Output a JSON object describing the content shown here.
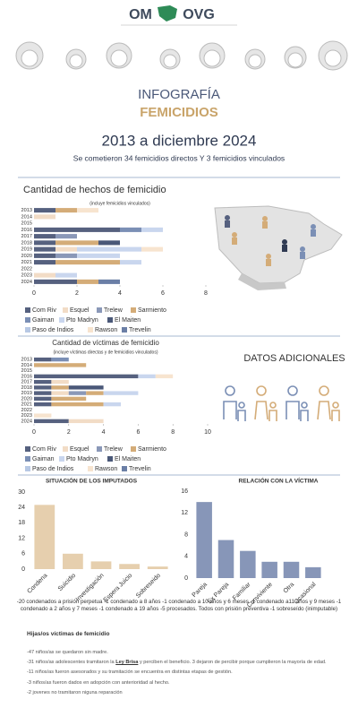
{
  "header": {
    "logo_left": "OM",
    "logo_right": "OVG",
    "title": "INFOGRAFÍA",
    "subtitle": "FEMICIDIOS",
    "period": "2013 a diciembre 2024",
    "summary": "Se cometieron 34 femicidios directos Y 3 femicidios vinculados",
    "extra_title": "DATOS ADICIONALES"
  },
  "chart_data": [
    {
      "type": "bar",
      "orientation": "horizontal",
      "stacked": true,
      "title": "Cantidad de hechos de femicidio",
      "subtitle": "(incluye femicidios vinculados)",
      "categories": [
        "2013",
        "2014",
        "2015",
        "2016",
        "2017",
        "2018",
        "2019",
        "2020",
        "2021",
        "2022",
        "2023",
        "2024"
      ],
      "xlim": [
        0,
        8
      ],
      "xticks": [
        0,
        2,
        4,
        6,
        8
      ],
      "series": [
        {
          "name": "Com Riv",
          "color": "#56617f",
          "values": [
            1,
            0,
            0,
            4,
            1,
            1,
            1,
            1,
            1,
            0,
            0,
            2
          ]
        },
        {
          "name": "Esquel",
          "color": "#f2dcc6",
          "values": [
            0,
            1,
            0,
            0,
            0,
            0,
            1,
            0,
            0,
            0,
            1,
            0
          ]
        },
        {
          "name": "Trelew",
          "color": "#8a98b8",
          "values": [
            0,
            0,
            0,
            0,
            1,
            0,
            0,
            1,
            0,
            0,
            0,
            0
          ]
        },
        {
          "name": "Sarmiento",
          "color": "#d4ac78",
          "values": [
            1,
            0,
            0,
            0,
            0,
            2,
            0,
            0,
            3,
            0,
            0,
            1
          ]
        },
        {
          "name": "Gaiman",
          "color": "#7b8fb5",
          "values": [
            0,
            0,
            0,
            1,
            0,
            0,
            0,
            0,
            0,
            0,
            0,
            0
          ]
        },
        {
          "name": "Pto Madryn",
          "color": "#c9d6ee",
          "values": [
            0,
            0,
            0,
            1,
            0,
            0,
            3,
            2,
            1,
            0,
            1,
            0
          ]
        },
        {
          "name": "El Maiten",
          "color": "#4a5878",
          "values": [
            0,
            0,
            0,
            0,
            0,
            1,
            0,
            0,
            0,
            0,
            0,
            0
          ]
        },
        {
          "name": "Paso de Indios",
          "color": "#b7c8e4",
          "values": [
            0,
            0,
            0,
            0,
            0,
            0,
            0,
            0,
            0,
            0,
            0,
            0
          ]
        },
        {
          "name": "Rawson",
          "color": "#f7e4cf",
          "values": [
            1,
            0,
            0,
            0,
            0,
            0,
            1,
            0,
            0,
            0,
            0,
            0
          ]
        },
        {
          "name": "Trevelin",
          "color": "#6b7fa6",
          "values": [
            0,
            0,
            0,
            0,
            0,
            0,
            0,
            0,
            0,
            0,
            0,
            1
          ]
        }
      ]
    },
    {
      "type": "bar",
      "orientation": "horizontal",
      "stacked": true,
      "title": "Cantidad de víctimas de femicidio",
      "subtitle": "(incluye víctimas directas y de femicidios vinculados)",
      "categories": [
        "2013",
        "2014",
        "2015",
        "2016",
        "2017",
        "2018",
        "2019",
        "2020",
        "2021",
        "2022",
        "2023",
        "2024"
      ],
      "xlim": [
        0,
        10
      ],
      "xticks": [
        0,
        2,
        4,
        6,
        8,
        10
      ],
      "series": [
        {
          "name": "Com Riv",
          "color": "#56617f",
          "values": [
            1,
            0,
            0,
            6,
            1,
            1,
            1,
            1,
            1,
            0,
            0,
            2
          ]
        },
        {
          "name": "Esquel",
          "color": "#f2dcc6",
          "values": [
            0,
            0,
            0,
            0,
            1,
            0,
            1,
            0,
            0,
            0,
            0,
            2
          ]
        },
        {
          "name": "Trelew",
          "color": "#8a98b8",
          "values": [
            0,
            0,
            0,
            0,
            0,
            0,
            1,
            0,
            0,
            0,
            0,
            0
          ]
        },
        {
          "name": "Sarmiento",
          "color": "#d4ac78",
          "values": [
            0,
            3,
            0,
            0,
            0,
            1,
            1,
            2,
            3,
            0,
            0,
            0
          ]
        },
        {
          "name": "Gaiman",
          "color": "#7b8fb5",
          "values": [
            1,
            0,
            0,
            0,
            0,
            0,
            0,
            0,
            0,
            0,
            0,
            0
          ]
        },
        {
          "name": "Pto Madryn",
          "color": "#c9d6ee",
          "values": [
            0,
            0,
            0,
            1,
            0,
            0,
            2,
            0,
            1,
            0,
            0,
            0
          ]
        },
        {
          "name": "El Maiten",
          "color": "#4a5878",
          "values": [
            0,
            0,
            0,
            0,
            0,
            2,
            0,
            0,
            0,
            0,
            0,
            0
          ]
        },
        {
          "name": "Paso de Indios",
          "color": "#b7c8e4",
          "values": [
            0,
            0,
            0,
            0,
            0,
            0,
            0,
            0,
            0,
            0,
            0,
            0
          ]
        },
        {
          "name": "Rawson",
          "color": "#f7e4cf",
          "values": [
            0,
            0,
            0,
            1,
            0,
            0,
            0,
            0,
            0,
            0,
            1,
            0
          ]
        },
        {
          "name": "Trevelin",
          "color": "#6b7fa6",
          "values": [
            0,
            0,
            0,
            0,
            0,
            0,
            0,
            0,
            0,
            0,
            0,
            0
          ]
        }
      ]
    },
    {
      "type": "bar",
      "title": "SITUACIÓN DE LOS IMPUTADOS",
      "categories": [
        "Condena",
        "Suicidio",
        "Investigación",
        "Espera Juicio",
        "Sobreseido"
      ],
      "values": [
        25,
        6,
        3,
        2,
        1
      ],
      "color": "#e6cfae",
      "ylim": [
        0,
        30
      ],
      "yticks": [
        0,
        6,
        12,
        18,
        24,
        30
      ]
    },
    {
      "type": "bar",
      "title": "RELACIÓN CON LA VÍCTIMA",
      "categories": [
        "Pareja",
        "Ex Pareja",
        "Familiar",
        "Conviviente",
        "Otra",
        "Ocasional"
      ],
      "values": [
        14,
        7,
        5,
        3,
        3,
        2
      ],
      "color": "#8796b8",
      "ylim": [
        0,
        16
      ],
      "yticks": [
        0,
        4,
        8,
        12,
        16
      ]
    }
  ],
  "condenas": "-20 condenados a prisión perpetua -1 condenado a 8 años -1 condenado a 10 años y 6 meses -1 condenado a11 años y 9 meses -1 condenado a 2 años y 7 meses -1 condenado a 19 años -5 procesados. Todos con prisión preventiva -1 sobreseído (inimputable)",
  "hijos": {
    "title": "Hijas/os víctimas de femicidio",
    "items": [
      [
        "-47 niños/as se quedaron sin madre."
      ],
      [
        "-31 niños/as adolescentes tramitaron la ",
        "Ley Brisa",
        " y perciben el beneficio. 3 dejaron de percibir porque cumplieron la mayoría de edad."
      ],
      [
        "-11 niños/as fueron asesorados y su tramitación se encuentra en distintas etapas de gestión."
      ],
      [
        "-3 niños/as fueron dados en adopción con anterioridad al hecho."
      ],
      [
        "-2 jovenes no tramitaron niguna reparación"
      ]
    ]
  }
}
